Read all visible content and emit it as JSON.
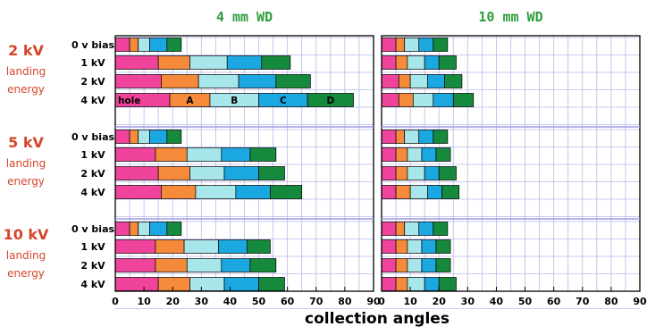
{
  "chart_data": {
    "type": "bar",
    "orientation": "horizontal",
    "stacked": true,
    "xlabel": "collection angles",
    "xlim": [
      0,
      90
    ],
    "xticks": [
      0,
      10,
      20,
      30,
      40,
      50,
      60,
      70,
      80,
      90
    ],
    "grid": true,
    "segment_names": [
      "hole",
      "A",
      "B",
      "C",
      "D"
    ],
    "segment_colors": [
      "#f0449c",
      "#f58a3a",
      "#a7e6ea",
      "#1ba8e0",
      "#168a3c"
    ],
    "panels": [
      {
        "title": "4 mm WD"
      },
      {
        "title": "10 mm WD"
      }
    ],
    "groups": [
      {
        "label": [
          "2 kV",
          "landing",
          "energy"
        ],
        "rows": [
          {
            "label": "0 v bias",
            "wd4": [
              5,
              8,
              12,
              18,
              23
            ],
            "wd10": [
              5,
              8,
              13,
              18,
              23
            ]
          },
          {
            "label": "1 kV",
            "wd4": [
              15,
              26,
              39,
              51,
              61
            ],
            "wd10": [
              5,
              9,
              15,
              20,
              26
            ]
          },
          {
            "label": "2 kV",
            "wd4": [
              16,
              29,
              43,
              56,
              68
            ],
            "wd10": [
              6,
              10,
              16,
              22,
              28
            ]
          },
          {
            "label": "4 kV",
            "wd4": [
              19,
              33,
              50,
              67,
              83
            ],
            "wd10": [
              6,
              11,
              18,
              25,
              32
            ],
            "segment_labels": true
          }
        ]
      },
      {
        "label": [
          "5 kV",
          "landing",
          "energy"
        ],
        "rows": [
          {
            "label": "0 v bias",
            "wd4": [
              5,
              8,
              12,
              18,
              23
            ],
            "wd10": [
              5,
              8,
              13,
              18,
              23
            ]
          },
          {
            "label": "1 kV",
            "wd4": [
              14,
              25,
              37,
              47,
              56
            ],
            "wd10": [
              5,
              9,
              14,
              19,
              24
            ]
          },
          {
            "label": "2 kV",
            "wd4": [
              15,
              26,
              38,
              50,
              59
            ],
            "wd10": [
              5,
              9,
              15,
              20,
              26
            ]
          },
          {
            "label": "4 kV",
            "wd4": [
              16,
              28,
              42,
              54,
              65
            ],
            "wd10": [
              5,
              10,
              16,
              21,
              27
            ]
          }
        ]
      },
      {
        "label": [
          "10 kV",
          "landing",
          "energy"
        ],
        "rows": [
          {
            "label": "0 v bias",
            "wd4": [
              5,
              8,
              12,
              18,
              23
            ],
            "wd10": [
              5,
              8,
              13,
              18,
              23
            ]
          },
          {
            "label": "1 kV",
            "wd4": [
              14,
              24,
              36,
              46,
              54
            ],
            "wd10": [
              5,
              9,
              14,
              19,
              24
            ]
          },
          {
            "label": "2 kV",
            "wd4": [
              14,
              25,
              37,
              47,
              56
            ],
            "wd10": [
              5,
              9,
              14,
              19,
              24
            ]
          },
          {
            "label": "4 kV",
            "wd4": [
              15,
              26,
              38,
              50,
              59
            ],
            "wd10": [
              5,
              9,
              15,
              20,
              26
            ]
          }
        ]
      }
    ]
  }
}
